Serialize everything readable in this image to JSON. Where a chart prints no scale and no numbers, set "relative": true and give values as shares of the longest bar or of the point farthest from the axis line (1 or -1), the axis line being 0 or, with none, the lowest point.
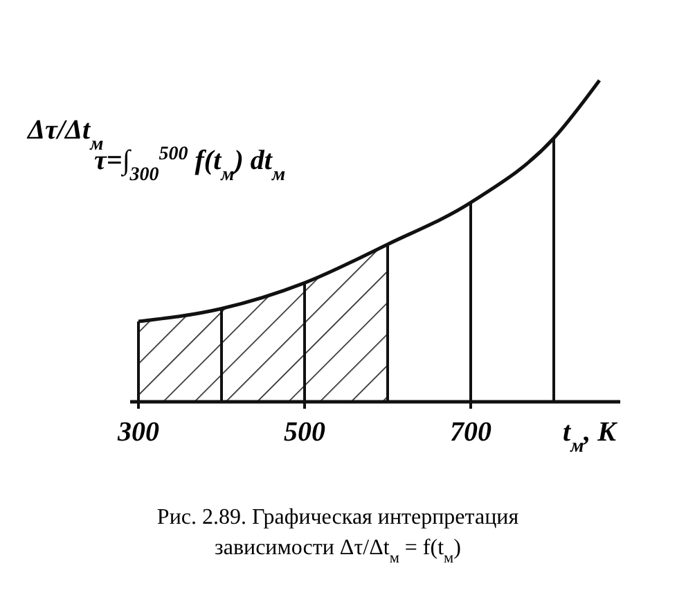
{
  "chart_data": {
    "type": "line",
    "relative": true,
    "ylabel": "Δτ/Δt$_{м}$",
    "xlabel": "t$_{м}$, K",
    "x": [
      300,
      400,
      500,
      600,
      700,
      800,
      855
    ],
    "series": [
      {
        "color": "#111111",
        "values": [
          0.25,
          0.29,
          0.37,
          0.49,
          0.62,
          0.82,
          1.0
        ]
      }
    ],
    "xlim": [
      290,
      880
    ],
    "xticks": [
      300,
      500,
      700
    ],
    "ref_lines": [
      {
        "axis": "x",
        "value": 300
      },
      {
        "axis": "x",
        "value": 400
      },
      {
        "axis": "x",
        "value": 500
      },
      {
        "axis": "x",
        "value": 600
      },
      {
        "axis": "x",
        "value": 700
      },
      {
        "axis": "x",
        "value": 800
      }
    ],
    "bands": [
      {
        "axis": "x",
        "from": 300,
        "to": 600
      }
    ],
    "annotations": [
      "τ=∫$_{300}$$^{500}$ f(t$_{м}$) dt$_{м}$",
      "Рис. 2.89. Графическая интерпретация",
      "зависимости Δτ/Δt$_{м}$ = f(t$_{м}$)"
    ]
  }
}
